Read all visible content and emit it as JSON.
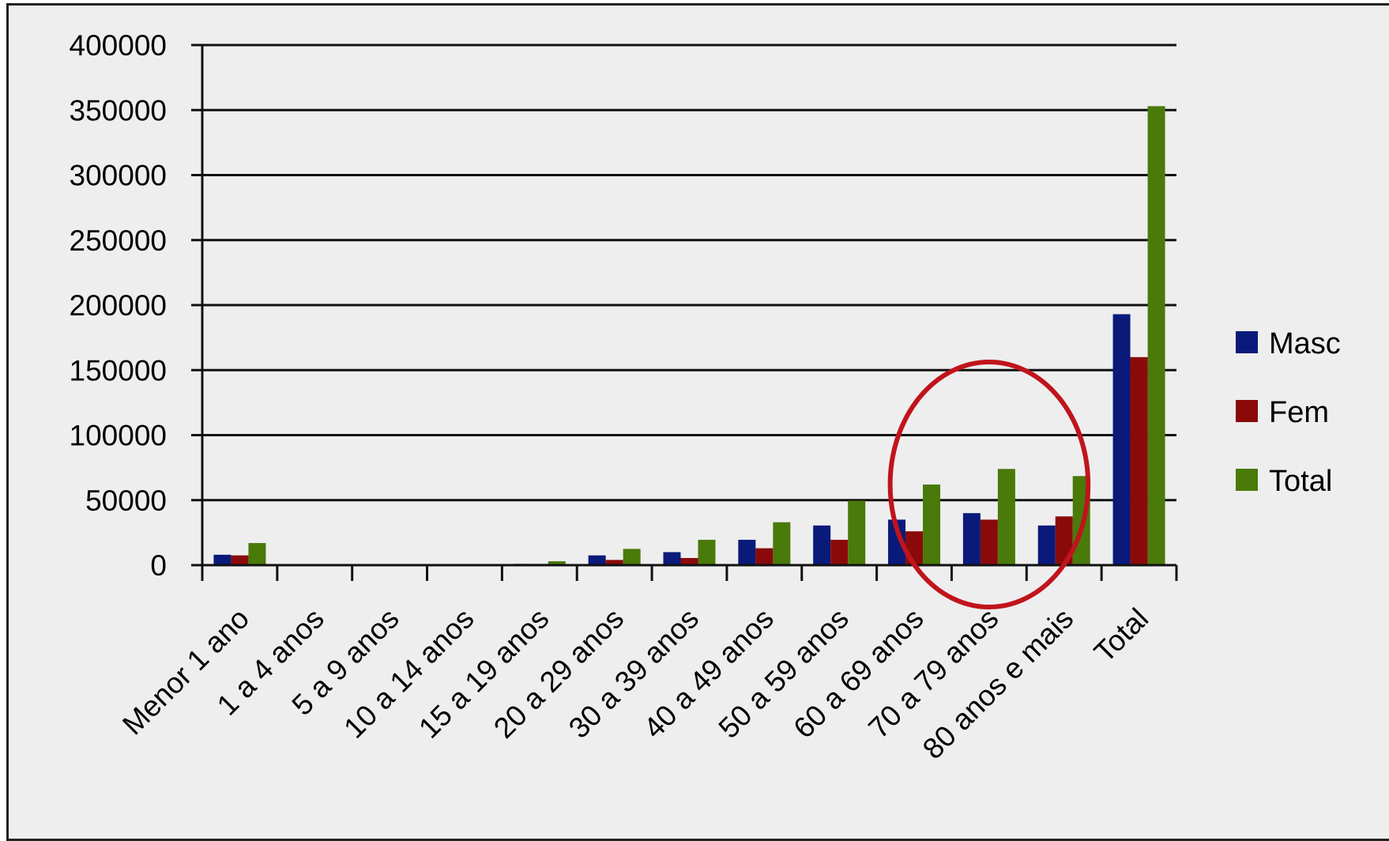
{
  "chart_data": {
    "type": "bar",
    "title": "",
    "xlabel": "",
    "ylabel": "",
    "categories": [
      "Menor 1 ano",
      "1 a 4 anos",
      "5 a 9 anos",
      "10 a 14 anos",
      "15 a 19 anos",
      "20 a 29 anos",
      "30 a 39 anos",
      "40 a 49 anos",
      "50 a 59 anos",
      "60 a 69 anos",
      "70 a 79 anos",
      "80 anos e mais",
      "Total"
    ],
    "series": [
      {
        "name": "Masc",
        "color": "#0a1a7a",
        "values": [
          8000,
          0,
          0,
          0,
          1000,
          7500,
          10000,
          19500,
          30500,
          35000,
          40000,
          30500,
          193000
        ]
      },
      {
        "name": "Fem",
        "color": "#8a0a0a",
        "values": [
          7500,
          0,
          0,
          0,
          1000,
          4000,
          5500,
          13000,
          19500,
          26000,
          35000,
          37500,
          160000
        ]
      },
      {
        "name": "Total",
        "color": "#4a7a0a",
        "values": [
          17000,
          0,
          0,
          0,
          3000,
          12500,
          19500,
          33000,
          49500,
          62000,
          74000,
          68500,
          353000
        ]
      }
    ],
    "ylim": [
      0,
      400000
    ],
    "y_ticks": [
      "0",
      "50000",
      "100000",
      "150000",
      "200000",
      "250000",
      "300000",
      "350000",
      "400000"
    ],
    "grid": true,
    "legend_position": "right",
    "annotation": {
      "shape": "circle",
      "color": "#c0141c",
      "highlights": [
        "60 a 69 anos",
        "70 a 79 anos",
        "80 anos e mais"
      ]
    }
  }
}
